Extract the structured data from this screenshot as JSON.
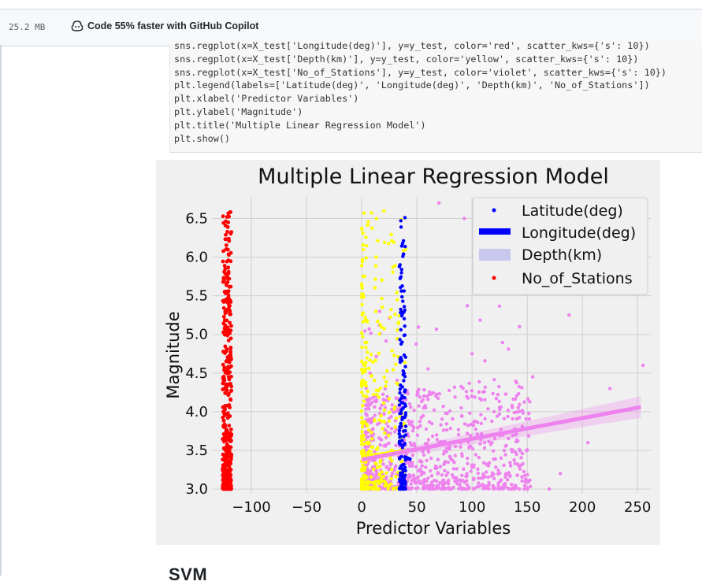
{
  "header": {
    "file_size": "25.2 MB",
    "copilot_text": "Code 55% faster with GitHub Copilot"
  },
  "code_cell": {
    "lines": [
      "sns.regplot(x=X_test['Longitude(deg)'], y=y_test, color='red', scatter_kws={'s': 10})",
      "sns.regplot(x=X_test['Depth(km)'], y=y_test, color='yellow', scatter_kws={'s': 10})",
      "sns.regplot(x=X_test['No_of_Stations'], y=y_test, color='violet', scatter_kws={'s': 10})",
      "plt.legend(labels=['Latitude(deg)', 'Longitude(deg)', 'Depth(km)', 'No_of_Stations'])",
      "plt.xlabel('Predictor Variables')",
      "plt.ylabel('Magnitude')",
      "plt.title('Multiple Linear Regression Model')",
      "plt.show()"
    ]
  },
  "chart_data": {
    "type": "scatter",
    "title": "Multiple Linear Regression Model",
    "xlabel": "Predictor Variables",
    "ylabel": "Magnitude",
    "xlim": [
      -135,
      262
    ],
    "ylim": [
      2.95,
      6.78
    ],
    "xticks": [
      -100,
      -50,
      0,
      50,
      100,
      150,
      200,
      250
    ],
    "xtick_labels": [
      "−100",
      "−50",
      "0",
      "50",
      "100",
      "150",
      "200",
      "250"
    ],
    "yticks": [
      3.0,
      3.5,
      4.0,
      4.5,
      5.0,
      5.5,
      6.0,
      6.5
    ],
    "ytick_labels": [
      "3.0",
      "3.5",
      "4.0",
      "4.5",
      "5.0",
      "5.5",
      "6.0",
      "6.5"
    ],
    "grid": true,
    "legend_position": "top-right",
    "legend": [
      "Latitude(deg)",
      "Longitude(deg)",
      "Depth(km)",
      "No_of_Stations"
    ],
    "series": [
      {
        "color": "#ff0000",
        "x_range": [
          -126,
          -118
        ],
        "y_range": [
          3.0,
          6.7
        ],
        "regression": {
          "x0": -126,
          "y0": 3.6,
          "x1": -118,
          "y1": 3.65
        }
      },
      {
        "color": "#0000ff",
        "x_range": [
          32,
          42
        ],
        "y_range": [
          3.0,
          6.7
        ],
        "regression": {
          "x0": 38,
          "y0": 3.42,
          "x1": 45,
          "y1": 3.38
        }
      },
      {
        "color": "#ffff00",
        "x_range": [
          0,
          40
        ],
        "y_range": [
          3.0,
          6.7
        ],
        "regression": {
          "x0": 0,
          "y0": 3.42,
          "x1": 40,
          "y1": 3.5
        }
      },
      {
        "color": "#ee82ee",
        "x_range": [
          5,
          255
        ],
        "y_range": [
          3.0,
          6.7
        ],
        "regression": {
          "x0": 0,
          "y0": 3.38,
          "x1": 253,
          "y1": 4.06
        }
      }
    ]
  },
  "below": {
    "next_heading": "SVM"
  }
}
